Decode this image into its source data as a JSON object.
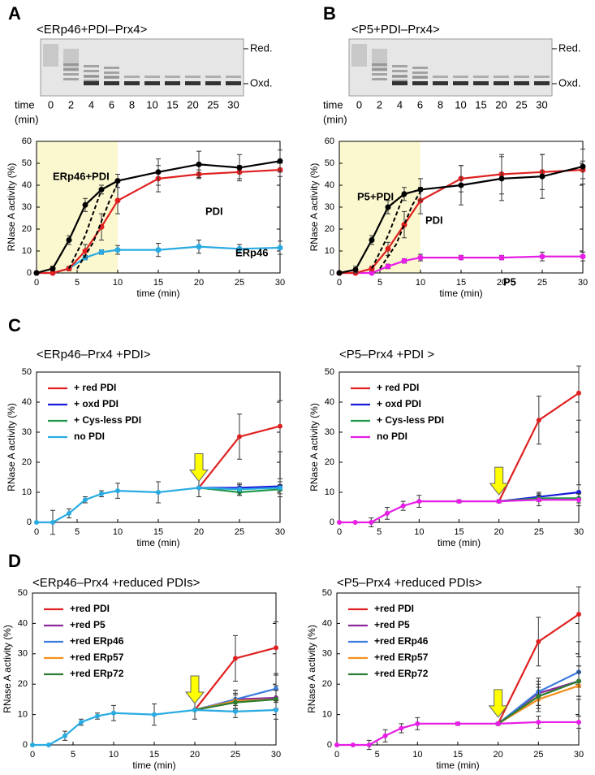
{
  "chart_data": [
    {
      "type": "line",
      "panel_label": "A",
      "title": "<ERp46+PDI–Prx4>",
      "gel": {
        "labels": [
          "Red.",
          "Oxd."
        ],
        "time_label": [
          "time",
          "(min)"
        ],
        "lanes": [
          0,
          2,
          4,
          6,
          8,
          10,
          15,
          20,
          25,
          30
        ]
      },
      "xlabel": "time (min)",
      "ylabel": "RNase A activity (%)",
      "x": [
        0,
        2,
        4,
        6,
        8,
        10,
        15,
        20,
        25,
        30
      ],
      "xlim": [
        0,
        30
      ],
      "xticks": [
        0,
        5,
        10,
        15,
        20,
        25,
        30
      ],
      "ylim": [
        0,
        60
      ],
      "yticks": [
        0,
        10,
        20,
        30,
        40,
        50,
        60
      ],
      "legend": "direct",
      "highlight_xlim": [
        0,
        10
      ],
      "highlight_color": "#fbf8d0",
      "series": [
        {
          "name": "ERp46",
          "color": "#29abe2",
          "values": [
            0,
            0,
            2,
            7,
            9.5,
            10.5,
            10.5,
            12,
            11,
            11.5
          ],
          "errors": [
            0,
            0,
            0.5,
            1,
            1,
            2,
            3,
            3,
            2,
            3
          ]
        },
        {
          "name": "PDI",
          "color": "#e02020",
          "values": [
            0,
            0,
            2,
            10,
            21,
            33,
            43,
            45,
            46,
            47
          ],
          "errors": [
            0,
            0,
            1,
            3,
            6,
            6,
            6,
            2,
            3,
            3
          ]
        },
        {
          "color": "#000000",
          "dashed": true,
          "x": [
            4,
            6,
            8,
            10
          ],
          "values": [
            2,
            17,
            38,
            42
          ]
        },
        {
          "color": "#000000",
          "dashed": true,
          "x": [
            5,
            7,
            9,
            10
          ],
          "values": [
            2,
            14,
            33,
            41
          ]
        },
        {
          "name": "ERp46+PDI",
          "color": "#000000",
          "values": [
            0,
            2,
            15,
            31,
            38,
            42,
            46,
            49.5,
            48,
            51
          ],
          "errors": [
            0,
            1,
            2,
            3,
            2,
            3,
            6,
            6,
            6,
            5
          ]
        }
      ]
    },
    {
      "type": "line",
      "panel_label": "B",
      "title": "<P5+PDI–Prx4>",
      "gel": {
        "labels": [
          "Red.",
          "Oxd."
        ],
        "time_label": [
          "time",
          "(min)"
        ],
        "lanes": [
          0,
          2,
          4,
          6,
          8,
          10,
          15,
          20,
          25,
          30
        ]
      },
      "xlabel": "time (min)",
      "ylabel": "RNase A activity (%)",
      "x": [
        0,
        2,
        4,
        6,
        8,
        10,
        15,
        20,
        25,
        30
      ],
      "xlim": [
        0,
        30
      ],
      "xticks": [
        0,
        5,
        10,
        15,
        20,
        25,
        30
      ],
      "ylim": [
        0,
        60
      ],
      "yticks": [
        0,
        10,
        20,
        30,
        40,
        50,
        60
      ],
      "legend": "direct",
      "highlight_xlim": [
        0,
        10
      ],
      "highlight_color": "#fbf8d0",
      "series": [
        {
          "name": "P5",
          "color": "#e61ee6",
          "values": [
            0,
            0,
            0,
            3,
            5.5,
            7,
            7,
            7,
            7.5,
            7.5
          ],
          "errors": [
            0,
            0,
            0,
            1,
            1,
            1.5,
            1,
            1,
            2,
            2
          ]
        },
        {
          "name": "PDI",
          "color": "#e02020",
          "values": [
            0,
            0,
            2,
            11,
            22,
            33,
            43,
            45,
            46,
            47
          ],
          "errors": [
            0,
            0,
            1,
            3,
            6,
            6,
            6,
            9,
            8,
            4
          ]
        },
        {
          "color": "#000000",
          "dashed": true,
          "x": [
            4,
            6,
            8,
            10
          ],
          "values": [
            2,
            17,
            36,
            38
          ]
        },
        {
          "color": "#000000",
          "dashed": true,
          "x": [
            5,
            7,
            9,
            10
          ],
          "values": [
            2,
            13,
            31,
            37
          ]
        },
        {
          "name": "P5+PDI",
          "color": "#000000",
          "values": [
            0,
            1.5,
            15,
            30,
            36,
            38,
            40,
            43,
            44,
            48.5
          ],
          "errors": [
            0,
            1.5,
            2,
            3,
            3,
            5,
            9,
            10,
            10,
            8
          ]
        }
      ]
    },
    {
      "type": "line",
      "panel_label": "C",
      "title": "<ERp46–Prx4 +PDI>",
      "xlabel": "time (min)",
      "ylabel": "RNase A activity (%)",
      "x": [
        0,
        2,
        4,
        6,
        8,
        10,
        15,
        20,
        25,
        30
      ],
      "xlim": [
        0,
        30
      ],
      "xticks": [
        0,
        5,
        10,
        15,
        20,
        25,
        30
      ],
      "ylim": [
        0,
        50
      ],
      "yticks": [
        0,
        10,
        20,
        30,
        40,
        50
      ],
      "legend": "upper left",
      "arrow_x": 20,
      "arrow_color": "#ffff00",
      "series": [
        {
          "name": "+ red PDI",
          "color": "#e02020",
          "x": [
            20,
            25,
            30
          ],
          "values": [
            11.5,
            28.5,
            32
          ],
          "errors": [
            0,
            7.5,
            8.5
          ]
        },
        {
          "name": "+ oxd PDI",
          "color": "#1a1adb",
          "x": [
            20,
            25,
            30
          ],
          "values": [
            11.5,
            11.5,
            12
          ],
          "errors": [
            0,
            1,
            1.5
          ]
        },
        {
          "name": "+ Cys-less PDI",
          "color": "#1e9a4a",
          "x": [
            20,
            25,
            30
          ],
          "values": [
            11.5,
            10,
            11
          ],
          "errors": [
            0,
            1,
            1.5
          ]
        },
        {
          "name": "no PDI",
          "color": "#29abe2",
          "values": [
            0,
            0,
            3,
            7.5,
            9.5,
            10.5,
            10,
            11.5,
            11,
            11.5
          ],
          "errors": [
            0,
            4,
            1.5,
            1,
            1,
            2.5,
            3.5,
            3,
            2,
            3
          ]
        }
      ]
    },
    {
      "type": "line",
      "title": "<P5–Prx4 +PDI >",
      "xlabel": "time (min)",
      "ylabel": "RNase A activity (%)",
      "x": [
        0,
        2,
        4,
        6,
        8,
        10,
        15,
        20,
        25,
        30
      ],
      "xlim": [
        0,
        30
      ],
      "xticks": [
        0,
        5,
        10,
        15,
        20,
        25,
        30
      ],
      "ylim": [
        0,
        50
      ],
      "yticks": [
        0,
        10,
        20,
        30,
        40,
        50
      ],
      "legend": "upper left",
      "arrow_x": 20,
      "arrow_color": "#ffff00",
      "series": [
        {
          "name": "+ red PDI",
          "color": "#e02020",
          "x": [
            20,
            25,
            30
          ],
          "values": [
            7,
            34,
            43
          ],
          "errors": [
            0,
            8,
            9
          ]
        },
        {
          "name": "+ oxd PDI",
          "color": "#1a1adb",
          "x": [
            20,
            25,
            30
          ],
          "values": [
            7,
            8.5,
            10
          ],
          "errors": [
            0,
            1.5,
            2.5
          ]
        },
        {
          "name": "+ Cys-less PDI",
          "color": "#1e9a4a",
          "x": [
            20,
            25,
            30
          ],
          "values": [
            7,
            8,
            8
          ],
          "errors": [
            0,
            1,
            1.5
          ]
        },
        {
          "name": "no PDI",
          "color": "#e61ee6",
          "values": [
            0,
            0,
            0,
            3,
            5.5,
            7,
            7,
            7,
            7.5,
            7.5
          ],
          "errors": [
            0,
            0,
            1.5,
            2,
            1.5,
            2,
            0.5,
            0.5,
            2,
            2
          ]
        }
      ]
    },
    {
      "type": "line",
      "panel_label": "D",
      "title": "<ERp46–Prx4 +reduced PDIs>",
      "xlabel": "time (min)",
      "ylabel": "RNase A activity (%)",
      "x": [
        0,
        2,
        4,
        6,
        8,
        10,
        15,
        20,
        25,
        30
      ],
      "xlim": [
        0,
        30
      ],
      "xticks": [
        0,
        5,
        10,
        15,
        20,
        25,
        30
      ],
      "ylim": [
        0,
        50
      ],
      "yticks": [
        0,
        10,
        20,
        30,
        40,
        50
      ],
      "legend": "upper left",
      "arrow_x": 20,
      "arrow_color": "#ffff00",
      "series": [
        {
          "name": "+red PDI",
          "color": "#e02020",
          "x": [
            20,
            25,
            30
          ],
          "values": [
            11.5,
            28.5,
            32
          ],
          "errors": [
            0,
            7.5,
            8.5
          ]
        },
        {
          "name": "+red P5",
          "color": "#8b2a9b",
          "x": [
            20,
            25,
            30
          ],
          "values": [
            11.5,
            15,
            15.5
          ],
          "errors": [
            0,
            3,
            4
          ]
        },
        {
          "name": "+red ERp46",
          "color": "#3c7be0",
          "x": [
            20,
            25,
            30
          ],
          "values": [
            11.5,
            15,
            18.5
          ],
          "errors": [
            0,
            3,
            4.5
          ]
        },
        {
          "name": "+red ERp57",
          "color": "#f5901e",
          "x": [
            20,
            25,
            30
          ],
          "values": [
            11.5,
            14.5,
            15
          ],
          "errors": [
            0,
            2.5,
            3
          ]
        },
        {
          "name": "+red ERp72",
          "color": "#2e7d32",
          "x": [
            20,
            25,
            30
          ],
          "values": [
            11.5,
            14,
            15
          ],
          "errors": [
            0,
            2.5,
            3
          ]
        },
        {
          "color": "#29abe2",
          "values": [
            0,
            0,
            3,
            7.5,
            9.5,
            10.5,
            10,
            11.5,
            11,
            11.5
          ],
          "errors": [
            0,
            0,
            1.5,
            1,
            1,
            2.5,
            3.5,
            3,
            2,
            3
          ]
        }
      ]
    },
    {
      "type": "line",
      "title": "<P5–Prx4 +reduced PDIs>",
      "xlabel": "time (min)",
      "ylabel": "RNase A activity (%)",
      "x": [
        0,
        2,
        4,
        6,
        8,
        10,
        15,
        20,
        25,
        30
      ],
      "xlim": [
        0,
        30
      ],
      "xticks": [
        0,
        5,
        10,
        15,
        20,
        25,
        30
      ],
      "ylim": [
        0,
        50
      ],
      "yticks": [
        0,
        10,
        20,
        30,
        40,
        50
      ],
      "legend": "upper left",
      "arrow_x": 20,
      "arrow_color": "#ffff00",
      "series": [
        {
          "name": "+red PDI",
          "color": "#e02020",
          "x": [
            20,
            25,
            30
          ],
          "values": [
            7,
            34,
            43
          ],
          "errors": [
            0,
            8,
            9
          ]
        },
        {
          "name": "+red P5",
          "color": "#8b2a9b",
          "x": [
            20,
            25,
            30
          ],
          "values": [
            7,
            17,
            21
          ],
          "errors": [
            0,
            4,
            5
          ]
        },
        {
          "name": "+red ERp46",
          "color": "#3c7be0",
          "x": [
            20,
            25,
            30
          ],
          "values": [
            7,
            17.5,
            24
          ],
          "errors": [
            0,
            4.5,
            5
          ]
        },
        {
          "name": "+red ERp57",
          "color": "#f5901e",
          "x": [
            20,
            25,
            30
          ],
          "values": [
            7,
            15,
            19.5
          ],
          "errors": [
            0,
            4,
            4.5
          ]
        },
        {
          "name": "+red ERp72",
          "color": "#2e7d32",
          "x": [
            20,
            25,
            30
          ],
          "values": [
            7,
            16,
            21
          ],
          "errors": [
            0,
            4,
            5
          ]
        },
        {
          "color": "#e61ee6",
          "values": [
            0,
            0,
            0,
            3,
            5.5,
            7,
            7,
            7,
            7.5,
            7.5
          ],
          "errors": [
            0,
            0,
            1.5,
            2,
            1.5,
            2,
            0.5,
            0.5,
            2,
            2
          ]
        }
      ]
    }
  ]
}
